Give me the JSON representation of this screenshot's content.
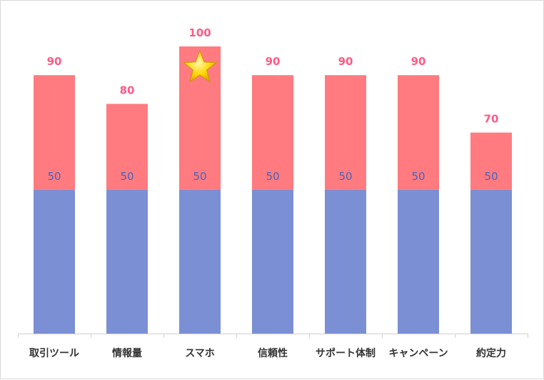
{
  "chart_data": {
    "type": "bar",
    "stacked": true,
    "categories": [
      "取引ツール",
      "情報量",
      "スマホ",
      "信頼性",
      "サポート体制",
      "キャンペーン",
      "約定力"
    ],
    "series": [
      {
        "values": [
          50,
          50,
          50,
          50,
          50,
          50,
          50
        ],
        "color": "#7b8fd4"
      },
      {
        "values": [
          40,
          30,
          50,
          40,
          40,
          40,
          20
        ],
        "color": "#ff7b80"
      }
    ],
    "base_labels": [
      "50",
      "50",
      "50",
      "50",
      "50",
      "50",
      "50"
    ],
    "total_labels": [
      "90",
      "80",
      "100",
      "90",
      "90",
      "90",
      "70"
    ],
    "highlight": {
      "category": "スマホ",
      "icon": "star-icon",
      "color": "#ffd700"
    },
    "ylim": [
      0,
      100
    ],
    "grid": false,
    "legend": "none",
    "title": "",
    "xlabel": "",
    "ylabel": ""
  }
}
